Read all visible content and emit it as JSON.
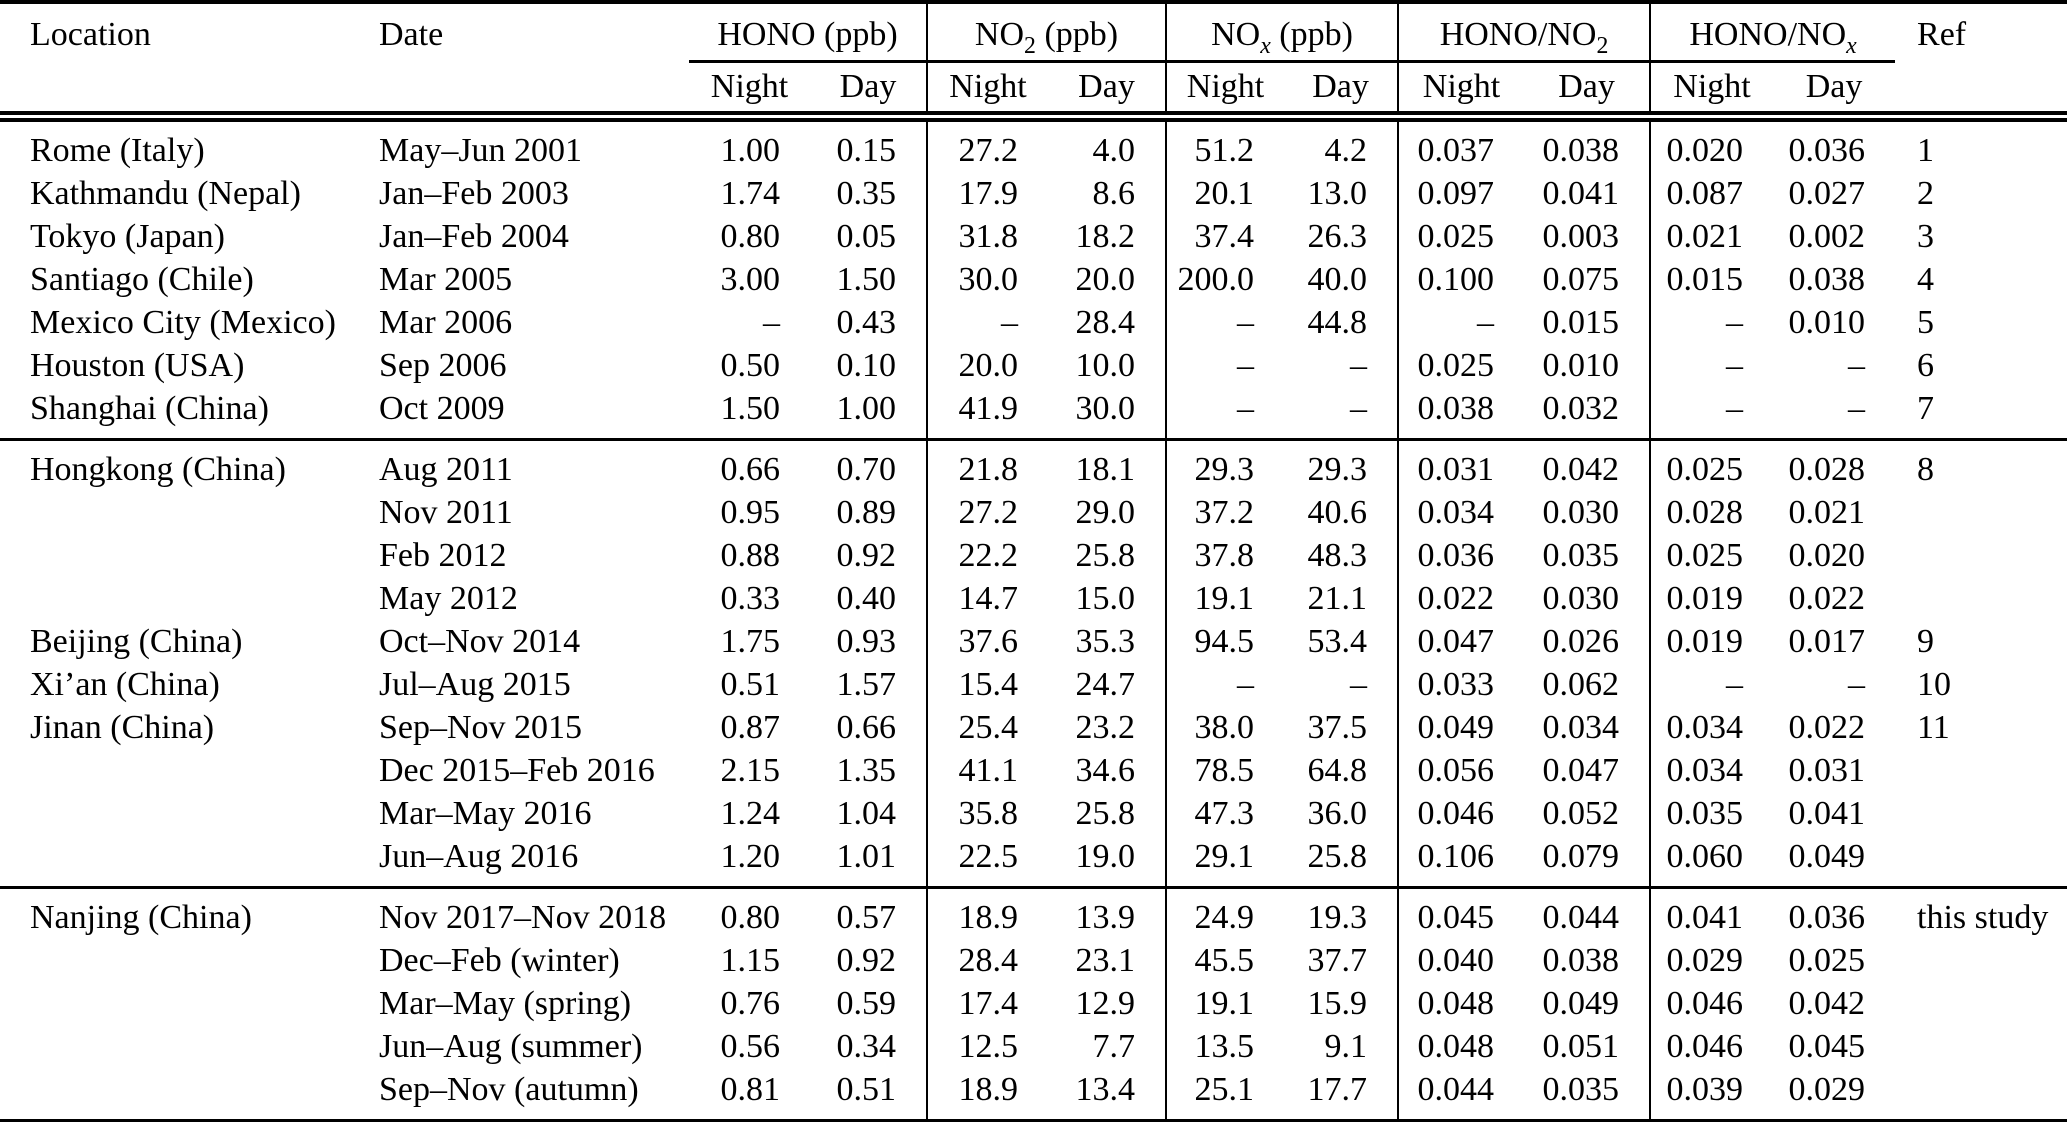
{
  "table": {
    "headers": {
      "location": "Location",
      "date": "Date",
      "ref": "Ref",
      "night": "Night",
      "day": "Day",
      "groups": [
        {
          "base": "HONO",
          "sub": "",
          "suffix": " (ppb)"
        },
        {
          "base": "NO",
          "sub": "2",
          "suffix": " (ppb)"
        },
        {
          "base": "NO",
          "sub": "x",
          "suffix": " (ppb)"
        },
        {
          "base": "HONO/NO",
          "sub": "2",
          "suffix": ""
        },
        {
          "base": "HONO/NO",
          "sub": "x",
          "suffix": ""
        }
      ]
    },
    "missing_value_symbol": "–",
    "sections": [
      {
        "rows": [
          {
            "location": "Rome (Italy)",
            "date": "May–Jun 2001",
            "values": [
              "1.00",
              "0.15",
              "27.2",
              "4.0",
              "51.2",
              "4.2",
              "0.037",
              "0.038",
              "0.020",
              "0.036"
            ],
            "ref": "1"
          },
          {
            "location": "Kathmandu (Nepal)",
            "date": "Jan–Feb 2003",
            "values": [
              "1.74",
              "0.35",
              "17.9",
              "8.6",
              "20.1",
              "13.0",
              "0.097",
              "0.041",
              "0.087",
              "0.027"
            ],
            "ref": "2"
          },
          {
            "location": "Tokyo (Japan)",
            "date": "Jan–Feb 2004",
            "values": [
              "0.80",
              "0.05",
              "31.8",
              "18.2",
              "37.4",
              "26.3",
              "0.025",
              "0.003",
              "0.021",
              "0.002"
            ],
            "ref": "3"
          },
          {
            "location": "Santiago (Chile)",
            "date": "Mar 2005",
            "values": [
              "3.00",
              "1.50",
              "30.0",
              "20.0",
              "200.0",
              "40.0",
              "0.100",
              "0.075",
              "0.015",
              "0.038"
            ],
            "ref": "4"
          },
          {
            "location": "Mexico City (Mexico)",
            "date": "Mar 2006",
            "values": [
              "–",
              "0.43",
              "–",
              "28.4",
              "–",
              "44.8",
              "–",
              "0.015",
              "–",
              "0.010"
            ],
            "ref": "5"
          },
          {
            "location": "Houston (USA)",
            "date": "Sep 2006",
            "values": [
              "0.50",
              "0.10",
              "20.0",
              "10.0",
              "–",
              "–",
              "0.025",
              "0.010",
              "–",
              "–"
            ],
            "ref": "6"
          },
          {
            "location": "Shanghai (China)",
            "date": "Oct 2009",
            "values": [
              "1.50",
              "1.00",
              "41.9",
              "30.0",
              "–",
              "–",
              "0.038",
              "0.032",
              "–",
              "–"
            ],
            "ref": "7"
          }
        ]
      },
      {
        "rows": [
          {
            "location": "Hongkong (China)",
            "date": "Aug 2011",
            "values": [
              "0.66",
              "0.70",
              "21.8",
              "18.1",
              "29.3",
              "29.3",
              "0.031",
              "0.042",
              "0.025",
              "0.028"
            ],
            "ref": "8"
          },
          {
            "location": "",
            "date": "Nov 2011",
            "values": [
              "0.95",
              "0.89",
              "27.2",
              "29.0",
              "37.2",
              "40.6",
              "0.034",
              "0.030",
              "0.028",
              "0.021"
            ],
            "ref": ""
          },
          {
            "location": "",
            "date": "Feb 2012",
            "values": [
              "0.88",
              "0.92",
              "22.2",
              "25.8",
              "37.8",
              "48.3",
              "0.036",
              "0.035",
              "0.025",
              "0.020"
            ],
            "ref": ""
          },
          {
            "location": "",
            "date": "May 2012",
            "values": [
              "0.33",
              "0.40",
              "14.7",
              "15.0",
              "19.1",
              "21.1",
              "0.022",
              "0.030",
              "0.019",
              "0.022"
            ],
            "ref": ""
          },
          {
            "location": "Beijing (China)",
            "date": "Oct–Nov 2014",
            "values": [
              "1.75",
              "0.93",
              "37.6",
              "35.3",
              "94.5",
              "53.4",
              "0.047",
              "0.026",
              "0.019",
              "0.017"
            ],
            "ref": "9"
          },
          {
            "location": "Xi’an (China)",
            "date": "Jul–Aug 2015",
            "values": [
              "0.51",
              "1.57",
              "15.4",
              "24.7",
              "–",
              "–",
              "0.033",
              "0.062",
              "–",
              "–"
            ],
            "ref": "10"
          },
          {
            "location": "Jinan (China)",
            "date": "Sep–Nov 2015",
            "values": [
              "0.87",
              "0.66",
              "25.4",
              "23.2",
              "38.0",
              "37.5",
              "0.049",
              "0.034",
              "0.034",
              "0.022"
            ],
            "ref": "11"
          },
          {
            "location": "",
            "date": "Dec 2015–Feb 2016",
            "values": [
              "2.15",
              "1.35",
              "41.1",
              "34.6",
              "78.5",
              "64.8",
              "0.056",
              "0.047",
              "0.034",
              "0.031"
            ],
            "ref": ""
          },
          {
            "location": "",
            "date": "Mar–May 2016",
            "values": [
              "1.24",
              "1.04",
              "35.8",
              "25.8",
              "47.3",
              "36.0",
              "0.046",
              "0.052",
              "0.035",
              "0.041"
            ],
            "ref": ""
          },
          {
            "location": "",
            "date": "Jun–Aug 2016",
            "values": [
              "1.20",
              "1.01",
              "22.5",
              "19.0",
              "29.1",
              "25.8",
              "0.106",
              "0.079",
              "0.060",
              "0.049"
            ],
            "ref": ""
          }
        ]
      },
      {
        "rows": [
          {
            "location": "Nanjing (China)",
            "date": "Nov 2017–Nov 2018",
            "values": [
              "0.80",
              "0.57",
              "18.9",
              "13.9",
              "24.9",
              "19.3",
              "0.045",
              "0.044",
              "0.041",
              "0.036"
            ],
            "ref": "this study"
          },
          {
            "location": "",
            "date": "Dec–Feb (winter)",
            "values": [
              "1.15",
              "0.92",
              "28.4",
              "23.1",
              "45.5",
              "37.7",
              "0.040",
              "0.038",
              "0.029",
              "0.025"
            ],
            "ref": ""
          },
          {
            "location": "",
            "date": "Mar–May (spring)",
            "values": [
              "0.76",
              "0.59",
              "17.4",
              "12.9",
              "19.1",
              "15.9",
              "0.048",
              "0.049",
              "0.046",
              "0.042"
            ],
            "ref": ""
          },
          {
            "location": "",
            "date": "Jun–Aug (summer)",
            "values": [
              "0.56",
              "0.34",
              "12.5",
              "7.7",
              "13.5",
              "9.1",
              "0.048",
              "0.051",
              "0.046",
              "0.045"
            ],
            "ref": ""
          },
          {
            "location": "",
            "date": "Sep–Nov (autumn)",
            "values": [
              "0.81",
              "0.51",
              "18.9",
              "13.4",
              "25.1",
              "17.7",
              "0.044",
              "0.035",
              "0.039",
              "0.029"
            ],
            "ref": ""
          }
        ]
      }
    ],
    "colors": {
      "text": "#000000",
      "rule": "#000000",
      "background": "#ffffff"
    }
  }
}
